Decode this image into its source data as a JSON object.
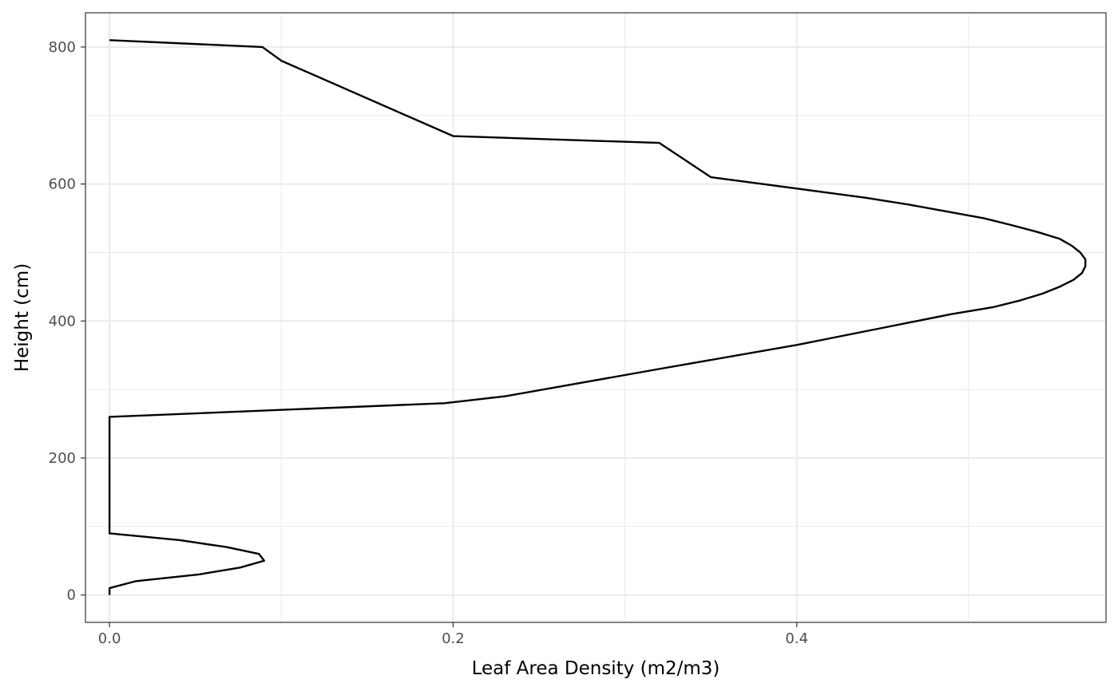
{
  "chart_data": {
    "type": "line",
    "title": "",
    "xlabel": "Leaf Area Density (m2/m3)",
    "ylabel": "Height (cm)",
    "xlim": [
      -0.014,
      0.58
    ],
    "ylim": [
      -40,
      850
    ],
    "x_ticks": [
      0.0,
      0.2,
      0.4
    ],
    "x_tick_labels": [
      "0.0",
      "0.2",
      "0.4"
    ],
    "x_minor_ticks": [
      0.1,
      0.3,
      0.5
    ],
    "y_ticks": [
      0,
      200,
      400,
      600,
      800
    ],
    "y_tick_labels": [
      "0",
      "200",
      "400",
      "600",
      "800"
    ],
    "y_minor_ticks": [
      100,
      300,
      500,
      700
    ],
    "grid": true,
    "legend": "none",
    "line_color": "#000000",
    "series": [
      {
        "points": [
          [
            0.0,
            0
          ],
          [
            0.0,
            10
          ],
          [
            0.015,
            20
          ],
          [
            0.052,
            30
          ],
          [
            0.076,
            40
          ],
          [
            0.09,
            50
          ],
          [
            0.087,
            60
          ],
          [
            0.068,
            70
          ],
          [
            0.041,
            80
          ],
          [
            0.0,
            90
          ],
          [
            0.0,
            260
          ],
          [
            0.195,
            280
          ],
          [
            0.23,
            290
          ],
          [
            0.32,
            330
          ],
          [
            0.4,
            365
          ],
          [
            0.45,
            390
          ],
          [
            0.49,
            410
          ],
          [
            0.514,
            420
          ],
          [
            0.53,
            430
          ],
          [
            0.543,
            440
          ],
          [
            0.553,
            450
          ],
          [
            0.561,
            460
          ],
          [
            0.566,
            470
          ],
          [
            0.568,
            480
          ],
          [
            0.568,
            490
          ],
          [
            0.565,
            500
          ],
          [
            0.56,
            510
          ],
          [
            0.553,
            520
          ],
          [
            0.54,
            530
          ],
          [
            0.525,
            540
          ],
          [
            0.509,
            550
          ],
          [
            0.487,
            560
          ],
          [
            0.465,
            570
          ],
          [
            0.44,
            580
          ],
          [
            0.41,
            590
          ],
          [
            0.38,
            600
          ],
          [
            0.35,
            610
          ],
          [
            0.32,
            660
          ],
          [
            0.2,
            670
          ],
          [
            0.1,
            780
          ],
          [
            0.089,
            800
          ],
          [
            0.0,
            810
          ]
        ]
      }
    ]
  }
}
